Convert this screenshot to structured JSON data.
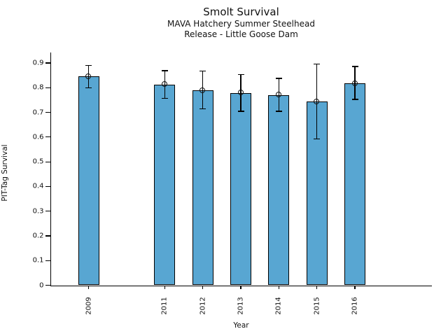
{
  "figure": {
    "title": "Smolt Survival",
    "subtitle_line1": "MAVA Hatchery Summer Steelhead",
    "subtitle_line2": "Release - Little Goose Dam"
  },
  "chart_data": {
    "type": "bar",
    "title": "Smolt Survival",
    "subtitle_lines": [
      "MAVA Hatchery Summer Steelhead",
      "Release - Little Goose Dam"
    ],
    "xlabel": "Year",
    "ylabel": "PIT-Tag Survival",
    "categories": [
      2009,
      2011,
      2012,
      2013,
      2014,
      2015,
      2016
    ],
    "values": [
      0.845,
      0.813,
      0.789,
      0.779,
      0.77,
      0.744,
      0.818
    ],
    "error_low": [
      0.8,
      0.757,
      0.714,
      0.704,
      0.704,
      0.592,
      0.752
    ],
    "error_high": [
      0.89,
      0.869,
      0.867,
      0.853,
      0.837,
      0.896,
      0.886
    ],
    "x_note": "numeric year axis, 2010 absent (gap between 2009 and 2011)",
    "ylim": [
      0,
      0.94
    ],
    "yticks": [
      0,
      0.1,
      0.2,
      0.3,
      0.4,
      0.5,
      0.6,
      0.7,
      0.8,
      0.9
    ],
    "ytick_labels": [
      "0",
      "0.1",
      "0.2",
      "0.3",
      "0.4",
      "0.5",
      "0.6",
      "0.7",
      "0.8",
      "0.9"
    ],
    "grid": false,
    "legend": null,
    "marker": "open-circle",
    "bar_color": "#58A6D2",
    "bar_edge_color": "#000000",
    "error_color": "#000000"
  }
}
